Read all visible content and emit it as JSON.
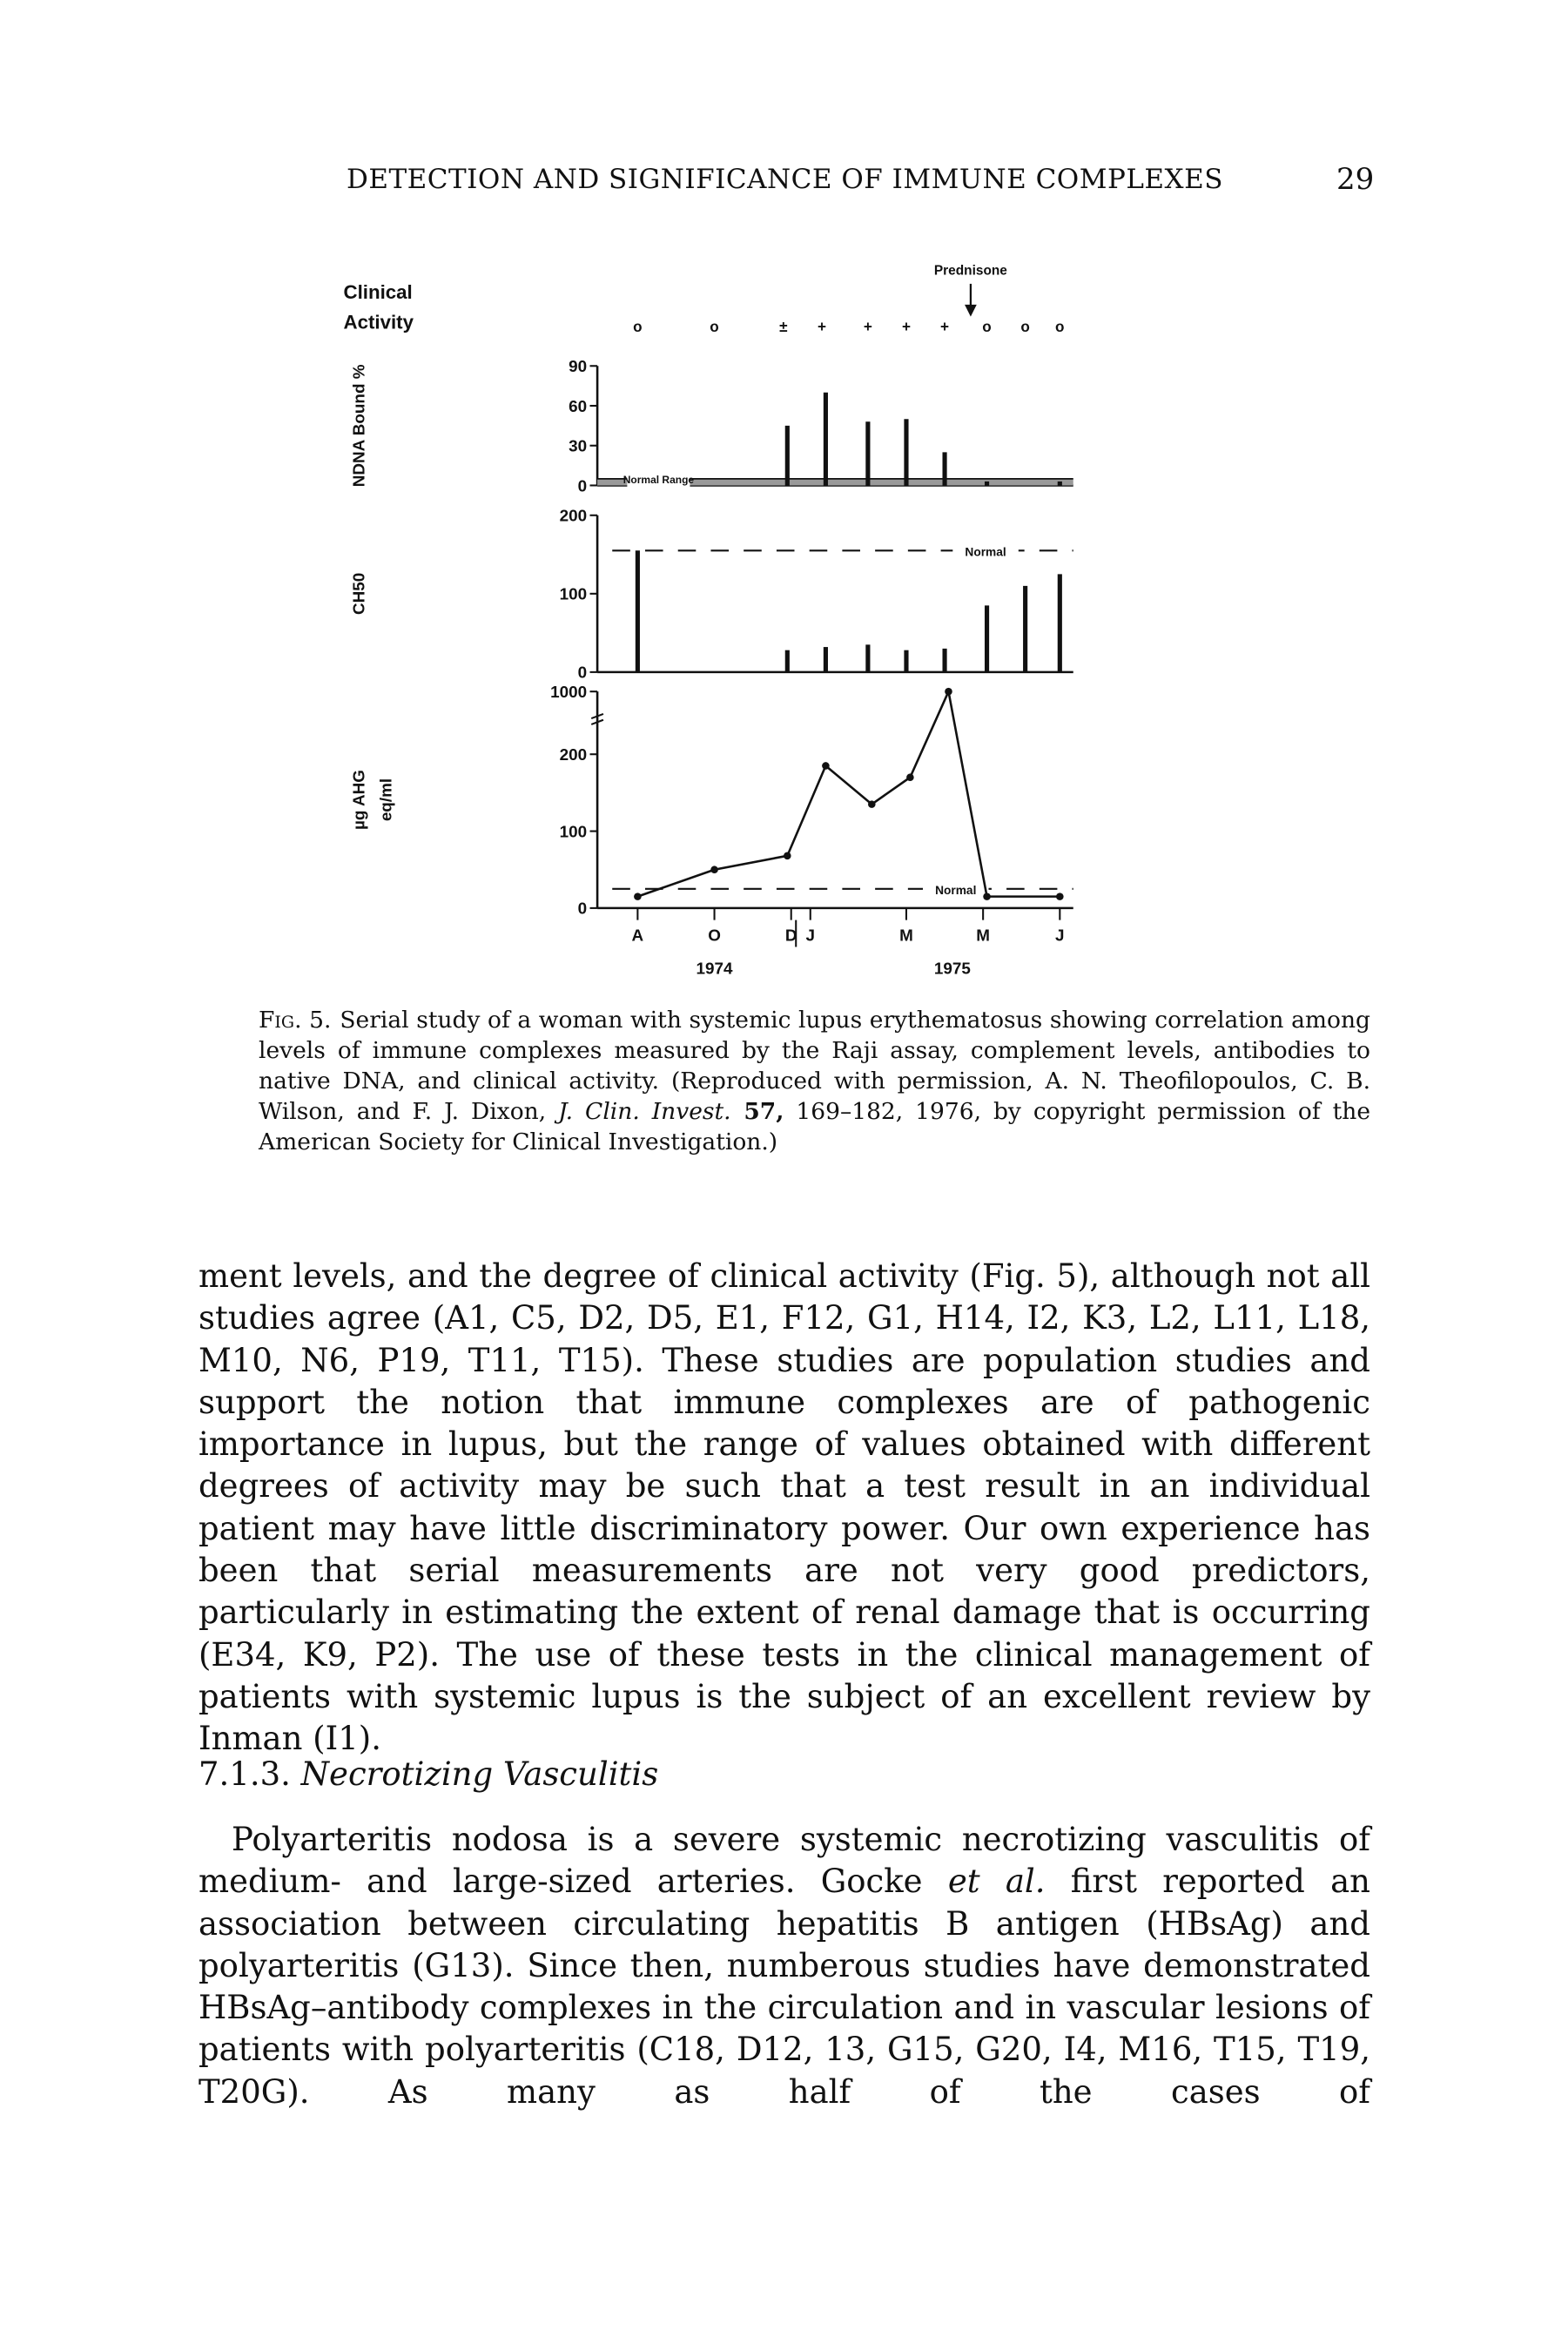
{
  "header": {
    "title": "DETECTION AND SIGNIFICANCE OF IMMUNE COMPLEXES",
    "page_number": "29"
  },
  "chart_data": [
    {
      "type": "symbols",
      "title": [
        "Clinical",
        "Activity"
      ],
      "annotation": "Prednisone",
      "x": [
        0,
        2,
        3.8,
        4.8,
        6,
        7,
        8,
        9.1,
        10.1,
        11
      ],
      "values": [
        "o",
        "o",
        "±",
        "+",
        "+",
        "+",
        "+",
        "o",
        "o",
        "o"
      ]
    },
    {
      "type": "bar",
      "ylabel": "NDNA Bound %",
      "x": [
        3.9,
        4.9,
        6,
        7,
        8,
        9.1,
        11
      ],
      "values": [
        45,
        70,
        48,
        50,
        25,
        3,
        3
      ],
      "ylim": [
        0,
        90
      ],
      "yticks": [
        0,
        30,
        60,
        90
      ],
      "normal_range": [
        0,
        5
      ],
      "normal_label": "Normal Range"
    },
    {
      "type": "bar",
      "ylabel": "CH50",
      "x": [
        0,
        3.9,
        4.9,
        6,
        7,
        8,
        9.1,
        10.1,
        11
      ],
      "values": [
        155,
        28,
        32,
        35,
        28,
        30,
        85,
        110,
        125
      ],
      "ylim": [
        0,
        200
      ],
      "yticks": [
        0,
        100,
        200
      ],
      "normal": 155,
      "normal_label": "Normal"
    },
    {
      "type": "line",
      "ylabel": [
        "µg AHG",
        "eq/ml"
      ],
      "x": [
        0,
        2,
        3.9,
        4.9,
        6.1,
        7.1,
        8.1,
        9.1,
        11
      ],
      "values": [
        15,
        50,
        68,
        185,
        135,
        170,
        1000,
        15,
        15
      ],
      "ylim": [
        0,
        1000
      ],
      "yticks": [
        0,
        100,
        200,
        1000
      ],
      "axis_break": true,
      "normal": 25,
      "normal_label": "Normal",
      "xlim": [
        -1.05,
        11.35
      ],
      "xticks": [
        {
          "value": 0,
          "label": "A"
        },
        {
          "value": 2,
          "label": "O"
        },
        {
          "value": 4,
          "label": "D"
        },
        {
          "value": 4.5,
          "label": "J"
        },
        {
          "value": 7,
          "label": "M"
        },
        {
          "value": 9,
          "label": "M"
        },
        {
          "value": 11,
          "label": "J"
        }
      ],
      "year_labels": [
        "1974",
        "1975"
      ]
    }
  ],
  "caption": {
    "label": "Fig. 5.",
    "text": [
      "Serial study of a woman with systemic lupus erythematosus showing correlation among levels of immune complexes measured by the Raji assay, complement levels, antibodies to native DNA, and clinical activity. (Reproduced with permission, A. N. Theofilopoulos, C. B. Wilson, and F. J. Dixon, ",
      "J. Clin. Invest.",
      " 57,",
      " 169–182, 1976, by copyright permission of the American Society for Clinical Investigation.)"
    ]
  },
  "paragraphs": [
    [
      "ment levels, and the degree of clinical activity (Fig. 5), although not all studies agree (A1, C5, D2, D5, E1, F12, G1, H14, I2, K3, L2, L11, L18, M10, N6, P19, T11, T15). These studies are population studies and support the notion that immune complexes are of pathogenic importance in lupus, but the range of values obtained with different degrees of activity may be such that a test result in an individual patient may have little discriminatory power. Our own experience has been that serial measurements are not very good predictors, particularly in estimating the extent of renal damage that is occurring (E34, K9, P2). The use of these tests in the clinical management of patients with systemic lupus is the subject of an excellent review by Inman (I1)."
    ],
    [
      "Polyarteritis nodosa is a severe systemic necrotizing vasculitis of medium- and large-sized arteries. Gocke ",
      "et al.",
      " first reported an association between circulating hepatitis B antigen (HBsAg) and polyarteritis (G13). Since then, numberous studies have demonstrated HBsAg–antibody complexes in the circulation and in vascular lesions of patients with polyarteritis (C18, D12, 13, G15, G20, I4, M16, T15, T19, T20G). As many as half of the cases of"
    ]
  ],
  "section": {
    "number": "7.1.3.",
    "title": "Necrotizing Vasculitis"
  }
}
